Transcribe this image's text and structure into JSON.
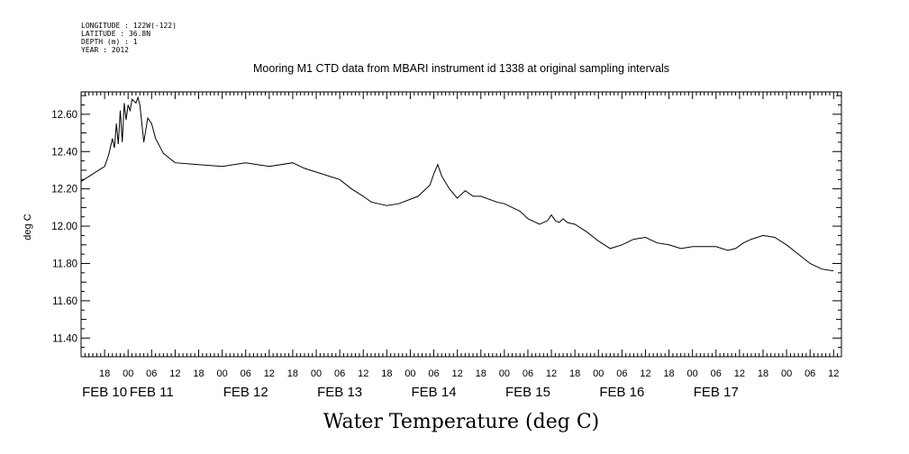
{
  "metadata_lines": [
    "LONGITUDE : 122W(-122)",
    "LATITUDE : 36.8N",
    "DEPTH (m) : 1",
    "YEAR : 2012"
  ],
  "chart_data": {
    "type": "line",
    "title": "Mooring M1 CTD data from MBARI instrument id 1338 at original sampling intervals",
    "xlabel": "Water Temperature (deg C)",
    "ylabel": "deg C",
    "x_unit": "time (2012)",
    "x_start": "2012-02-09T12:00",
    "x_end": "2012-02-17T14:00",
    "ylim": [
      11.3,
      12.72
    ],
    "y_ticks": [
      11.4,
      11.6,
      11.8,
      12.0,
      12.2,
      12.4,
      12.6
    ],
    "y_tick_labels": [
      "11.40",
      "11.60",
      "11.80",
      "12.00",
      "12.20",
      "12.40",
      "12.60"
    ],
    "x_hour_tick_labels": [
      {
        "t": "2012-02-09T18:00",
        "label": "18"
      },
      {
        "t": "2012-02-10T00:00",
        "label": "00"
      },
      {
        "t": "2012-02-10T06:00",
        "label": "06"
      },
      {
        "t": "2012-02-10T12:00",
        "label": "12"
      },
      {
        "t": "2012-02-10T18:00",
        "label": "18"
      },
      {
        "t": "2012-02-11T00:00",
        "label": "00"
      },
      {
        "t": "2012-02-11T06:00",
        "label": "06"
      },
      {
        "t": "2012-02-11T12:00",
        "label": "12"
      },
      {
        "t": "2012-02-11T18:00",
        "label": "18"
      },
      {
        "t": "2012-02-12T00:00",
        "label": "00"
      },
      {
        "t": "2012-02-12T06:00",
        "label": "06"
      },
      {
        "t": "2012-02-12T12:00",
        "label": "12"
      },
      {
        "t": "2012-02-12T18:00",
        "label": "18"
      },
      {
        "t": "2012-02-13T00:00",
        "label": "00"
      },
      {
        "t": "2012-02-13T06:00",
        "label": "06"
      },
      {
        "t": "2012-02-13T12:00",
        "label": "12"
      },
      {
        "t": "2012-02-13T18:00",
        "label": "18"
      },
      {
        "t": "2012-02-14T00:00",
        "label": "00"
      },
      {
        "t": "2012-02-14T06:00",
        "label": "06"
      },
      {
        "t": "2012-02-14T12:00",
        "label": "12"
      },
      {
        "t": "2012-02-14T18:00",
        "label": "18"
      },
      {
        "t": "2012-02-15T00:00",
        "label": "00"
      },
      {
        "t": "2012-02-15T06:00",
        "label": "06"
      },
      {
        "t": "2012-02-15T12:00",
        "label": "12"
      },
      {
        "t": "2012-02-15T18:00",
        "label": "18"
      },
      {
        "t": "2012-02-16T00:00",
        "label": "00"
      },
      {
        "t": "2012-02-16T06:00",
        "label": "06"
      },
      {
        "t": "2012-02-16T12:00",
        "label": "12"
      },
      {
        "t": "2012-02-16T18:00",
        "label": "18"
      },
      {
        "t": "2012-02-17T00:00",
        "label": "00"
      },
      {
        "t": "2012-02-17T06:00",
        "label": "06"
      },
      {
        "t": "2012-02-17T12:00",
        "label": "12"
      }
    ],
    "x_day_tick_labels": [
      {
        "t": "2012-02-09T18:00",
        "label": "FEB 10"
      },
      {
        "t": "2012-02-10T06:00",
        "label": "FEB 11"
      },
      {
        "t": "2012-02-11T06:00",
        "label": "FEB 12"
      },
      {
        "t": "2012-02-12T06:00",
        "label": "FEB 13"
      },
      {
        "t": "2012-02-13T06:00",
        "label": "FEB 14"
      },
      {
        "t": "2012-02-14T06:00",
        "label": "FEB 15"
      },
      {
        "t": "2012-02-15T06:00",
        "label": "FEB 16"
      },
      {
        "t": "2012-02-16T06:00",
        "label": "FEB 17"
      }
    ],
    "series": [
      {
        "values": [
          [
            "2012-02-09T12:00",
            12.24
          ],
          [
            "2012-02-09T15:00",
            12.28
          ],
          [
            "2012-02-09T18:00",
            12.32
          ],
          [
            "2012-02-09T19:00",
            12.38
          ],
          [
            "2012-02-09T20:00",
            12.47
          ],
          [
            "2012-02-09T20:30",
            12.42
          ],
          [
            "2012-02-09T21:00",
            12.55
          ],
          [
            "2012-02-09T21:30",
            12.44
          ],
          [
            "2012-02-09T22:00",
            12.62
          ],
          [
            "2012-02-09T22:30",
            12.45
          ],
          [
            "2012-02-09T23:00",
            12.66
          ],
          [
            "2012-02-09T23:30",
            12.57
          ],
          [
            "2012-02-10T00:00",
            12.65
          ],
          [
            "2012-02-10T00:30",
            12.62
          ],
          [
            "2012-02-10T01:00",
            12.68
          ],
          [
            "2012-02-10T02:00",
            12.66
          ],
          [
            "2012-02-10T02:30",
            12.69
          ],
          [
            "2012-02-10T03:00",
            12.65
          ],
          [
            "2012-02-10T04:00",
            12.45
          ],
          [
            "2012-02-10T05:00",
            12.58
          ],
          [
            "2012-02-10T06:00",
            12.55
          ],
          [
            "2012-02-10T07:00",
            12.47
          ],
          [
            "2012-02-10T09:00",
            12.39
          ],
          [
            "2012-02-10T12:00",
            12.34
          ],
          [
            "2012-02-10T18:00",
            12.33
          ],
          [
            "2012-02-11T00:00",
            12.32
          ],
          [
            "2012-02-11T06:00",
            12.34
          ],
          [
            "2012-02-11T12:00",
            12.32
          ],
          [
            "2012-02-11T18:00",
            12.34
          ],
          [
            "2012-02-11T21:00",
            12.31
          ],
          [
            "2012-02-12T00:00",
            12.29
          ],
          [
            "2012-02-12T06:00",
            12.25
          ],
          [
            "2012-02-12T09:00",
            12.2
          ],
          [
            "2012-02-12T12:00",
            12.16
          ],
          [
            "2012-02-12T14:00",
            12.13
          ],
          [
            "2012-02-12T18:00",
            12.11
          ],
          [
            "2012-02-12T21:00",
            12.12
          ],
          [
            "2012-02-13T02:00",
            12.16
          ],
          [
            "2012-02-13T05:00",
            12.22
          ],
          [
            "2012-02-13T06:00",
            12.28
          ],
          [
            "2012-02-13T07:00",
            12.33
          ],
          [
            "2012-02-13T08:00",
            12.27
          ],
          [
            "2012-02-13T10:00",
            12.2
          ],
          [
            "2012-02-13T12:00",
            12.15
          ],
          [
            "2012-02-13T13:00",
            12.17
          ],
          [
            "2012-02-13T14:00",
            12.19
          ],
          [
            "2012-02-13T16:00",
            12.16
          ],
          [
            "2012-02-13T18:00",
            12.16
          ],
          [
            "2012-02-13T22:00",
            12.13
          ],
          [
            "2012-02-14T00:00",
            12.12
          ],
          [
            "2012-02-14T04:00",
            12.08
          ],
          [
            "2012-02-14T06:00",
            12.04
          ],
          [
            "2012-02-14T09:00",
            12.01
          ],
          [
            "2012-02-14T11:00",
            12.03
          ],
          [
            "2012-02-14T12:00",
            12.06
          ],
          [
            "2012-02-14T13:00",
            12.03
          ],
          [
            "2012-02-14T14:00",
            12.02
          ],
          [
            "2012-02-14T15:00",
            12.04
          ],
          [
            "2012-02-14T16:00",
            12.02
          ],
          [
            "2012-02-14T18:00",
            12.01
          ],
          [
            "2012-02-14T21:00",
            11.97
          ],
          [
            "2012-02-15T00:00",
            11.92
          ],
          [
            "2012-02-15T03:00",
            11.88
          ],
          [
            "2012-02-15T06:00",
            11.9
          ],
          [
            "2012-02-15T09:00",
            11.93
          ],
          [
            "2012-02-15T12:00",
            11.94
          ],
          [
            "2012-02-15T15:00",
            11.91
          ],
          [
            "2012-02-15T18:00",
            11.9
          ],
          [
            "2012-02-15T21:00",
            11.88
          ],
          [
            "2012-02-16T00:00",
            11.89
          ],
          [
            "2012-02-16T03:00",
            11.89
          ],
          [
            "2012-02-16T06:00",
            11.89
          ],
          [
            "2012-02-16T09:00",
            11.87
          ],
          [
            "2012-02-16T11:00",
            11.88
          ],
          [
            "2012-02-16T13:00",
            11.91
          ],
          [
            "2012-02-16T15:00",
            11.93
          ],
          [
            "2012-02-16T18:00",
            11.95
          ],
          [
            "2012-02-16T21:00",
            11.94
          ],
          [
            "2012-02-17T00:00",
            11.9
          ],
          [
            "2012-02-17T03:00",
            11.85
          ],
          [
            "2012-02-17T06:00",
            11.8
          ],
          [
            "2012-02-17T09:00",
            11.77
          ],
          [
            "2012-02-17T12:00",
            11.76
          ]
        ]
      }
    ]
  }
}
